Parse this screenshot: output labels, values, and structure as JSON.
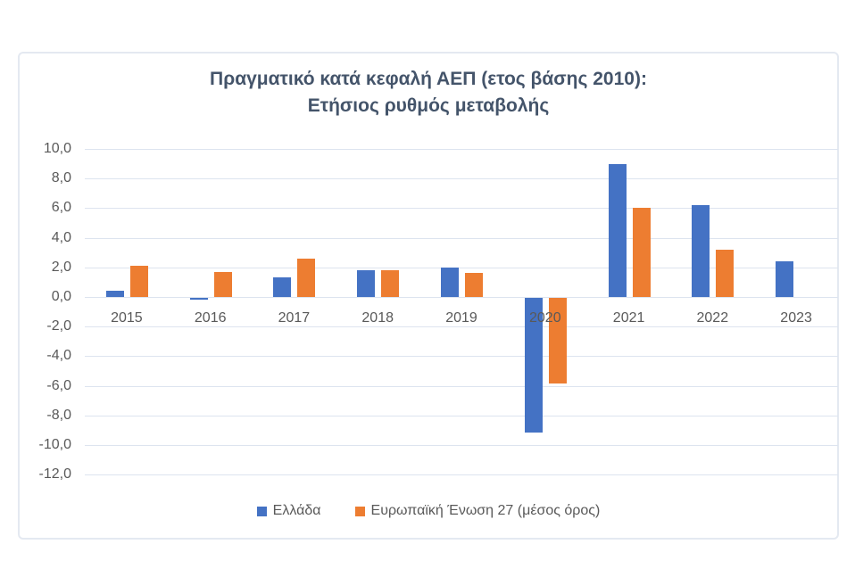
{
  "chart_data": {
    "type": "bar",
    "title_lines": [
      "Πραγματικό κατά κεφαλή ΑΕΠ (ετος βάσης 2010):",
      "Ετήσιος ρυθμός μεταβολής"
    ],
    "categories": [
      "2015",
      "2016",
      "2017",
      "2018",
      "2019",
      "2020",
      "2021",
      "2022",
      "2023"
    ],
    "series": [
      {
        "name": "Ελλάδα",
        "color": "#4472C4",
        "values": [
          0.4,
          -0.1,
          1.3,
          1.8,
          2.0,
          -9.1,
          9.0,
          6.2,
          2.4
        ]
      },
      {
        "name": "Ευρωπαϊκή Ένωση 27 (μέσος όρος)",
        "color": "#ED7D31",
        "values": [
          2.1,
          1.7,
          2.6,
          1.8,
          1.6,
          -5.8,
          6.0,
          3.2,
          null
        ]
      }
    ],
    "y_axis": {
      "min": -12,
      "max": 10,
      "step": 2,
      "tick_labels": [
        "10,0",
        "8,0",
        "6,0",
        "4,0",
        "2,0",
        "0,0",
        "-2,0",
        "-4,0",
        "-6,0",
        "-8,0",
        "-10,0",
        "-12,0"
      ]
    },
    "grid": true,
    "legend_position": "bottom",
    "colors": {
      "gridline": "#dde4ef",
      "frame_border": "#e4e9f1",
      "title_text": "#44546a",
      "axis_text": "#595959"
    }
  }
}
